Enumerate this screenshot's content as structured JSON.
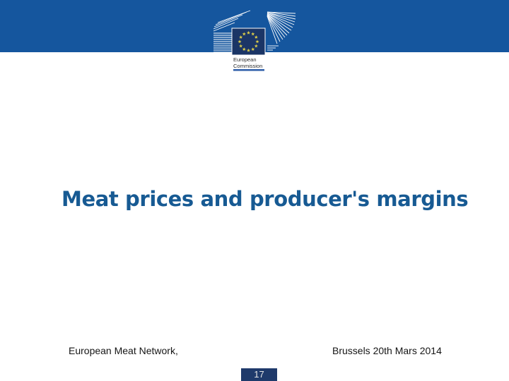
{
  "slide": {
    "title": "Meat prices and producer's margins",
    "footer": {
      "left": "European Meat Network,",
      "right": "Brussels 20th Mars 2014"
    },
    "page_number": "17"
  },
  "logo": {
    "icon": "european-commission-logo",
    "text_line1": "European",
    "text_line2": "Commission"
  },
  "colors": {
    "header_bar": "#15569E",
    "flag_navy": "#1B3566",
    "star_yellow": "#DCCD48",
    "title_blue": "#175A93",
    "page_box": "#1F3A6B",
    "logo_underline": "#2E5DA9",
    "footer_text": "#151515"
  }
}
